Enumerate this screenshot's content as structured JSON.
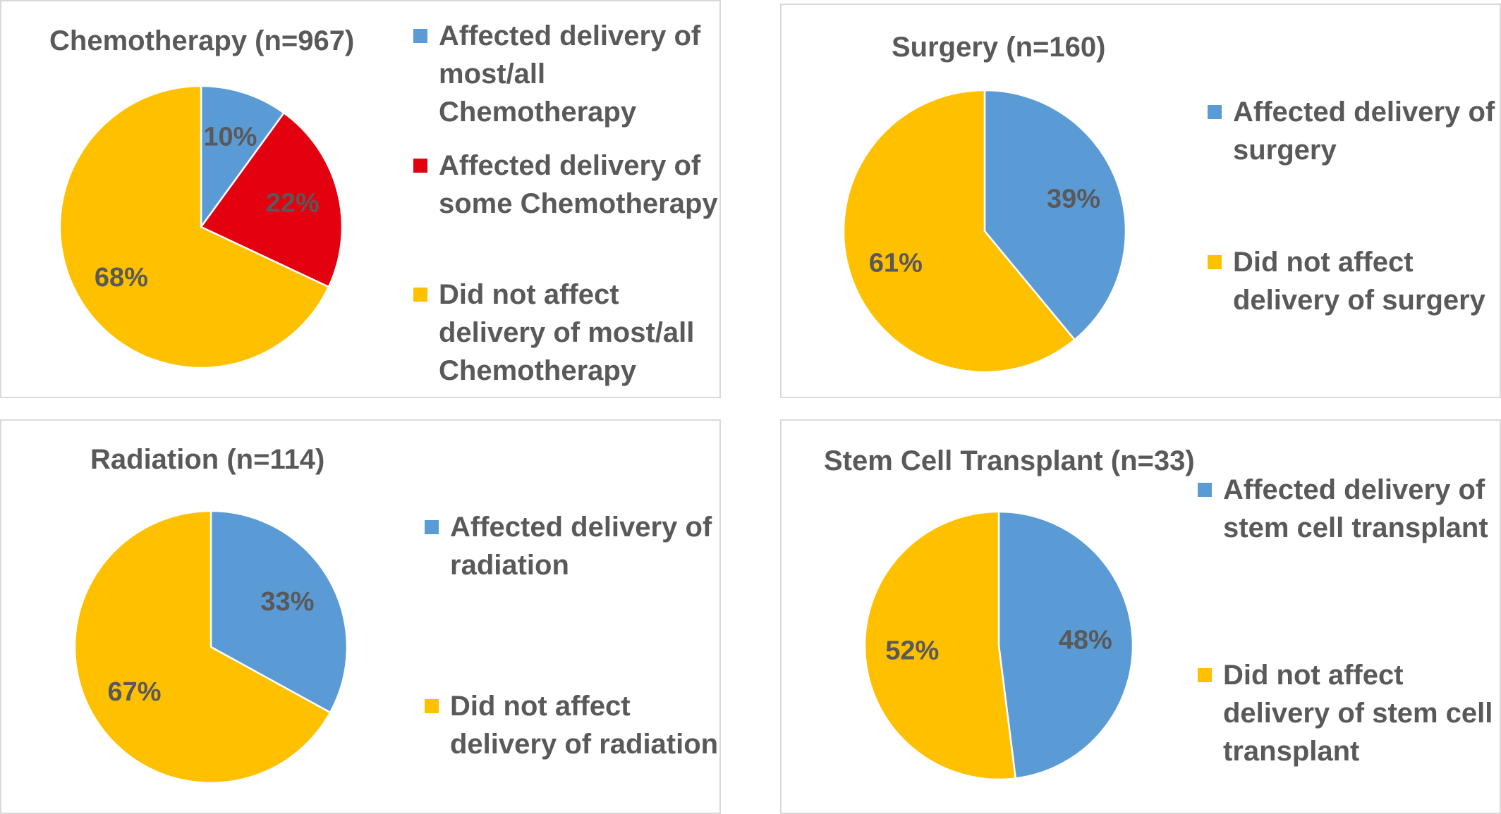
{
  "colors": {
    "blue": "#5b9bd5",
    "red": "#e3000f",
    "yellow": "#ffc000"
  },
  "chart_data": [
    {
      "type": "pie",
      "title": "Chemotherapy (n=967)",
      "slices": [
        {
          "label": "Affected delivery of most/all Chemotherapy",
          "value": 10,
          "data_label": "10%",
          "color": "#5b9bd5"
        },
        {
          "label": "Affected delivery of some Chemotherapy",
          "value": 22,
          "data_label": "22%",
          "color": "#e3000f"
        },
        {
          "label": "Did not affect delivery of most/all Chemotherapy",
          "value": 68,
          "data_label": "68%",
          "color": "#ffc000"
        }
      ],
      "legend": {
        "position": "right",
        "entries": [
          "Affected delivery of\nmost/all\nChemotherapy",
          "Affected delivery of\nsome Chemotherapy",
          "Did not affect\ndelivery of most/all\nChemotherapy"
        ]
      }
    },
    {
      "type": "pie",
      "title": "Surgery (n=160)",
      "slices": [
        {
          "label": "Affected delivery of surgery",
          "value": 39,
          "data_label": "39%",
          "color": "#5b9bd5"
        },
        {
          "label": "Did not affect delivery of surgery",
          "value": 61,
          "data_label": "61%",
          "color": "#ffc000"
        }
      ],
      "legend": {
        "position": "right",
        "entries": [
          "Affected delivery of\nsurgery",
          "Did not affect\ndelivery of surgery"
        ]
      }
    },
    {
      "type": "pie",
      "title": "Radiation (n=114)",
      "slices": [
        {
          "label": "Affected delivery of radiation",
          "value": 33,
          "data_label": "33%",
          "color": "#5b9bd5"
        },
        {
          "label": "Did not affect delivery of radiation",
          "value": 67,
          "data_label": "67%",
          "color": "#ffc000"
        }
      ],
      "legend": {
        "position": "right",
        "entries": [
          "Affected delivery of\nradiation",
          "Did not affect\ndelivery of radiation"
        ]
      }
    },
    {
      "type": "pie",
      "title": "Stem Cell Transplant (n=33)",
      "slices": [
        {
          "label": "Affected delivery of stem cell transplant",
          "value": 48,
          "data_label": "48%",
          "color": "#5b9bd5"
        },
        {
          "label": "Did not affect delivery of stem cell transplant",
          "value": 52,
          "data_label": "52%",
          "color": "#ffc000"
        }
      ],
      "legend": {
        "position": "right",
        "entries": [
          "Affected delivery of\nstem cell transplant",
          "Did not affect\ndelivery of stem cell\ntransplant"
        ]
      }
    }
  ]
}
